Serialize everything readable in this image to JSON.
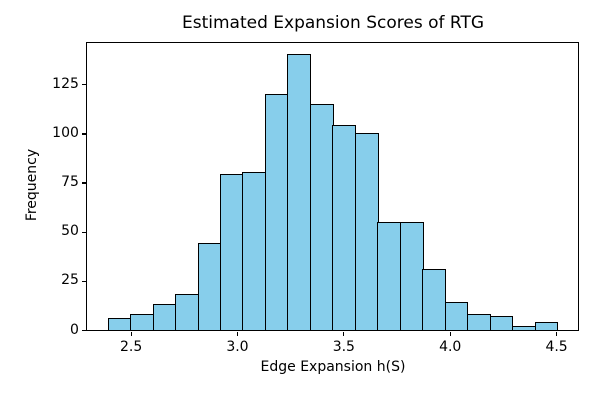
{
  "chart_data": {
    "type": "bar",
    "subtype": "histogram",
    "title": "Estimated Expansion Scores of RTG",
    "xlabel": "Edge Expansion h(S)",
    "ylabel": "Frequency",
    "bin_start": 2.394,
    "bin_width": 0.1056,
    "frequencies": [
      6,
      8,
      13,
      18,
      44,
      79,
      80,
      120,
      140,
      115,
      104,
      100,
      55,
      55,
      31,
      14,
      8,
      7,
      2,
      4
    ],
    "x_ticks": [
      2.5,
      3.0,
      3.5,
      4.0,
      4.5
    ],
    "x_tick_labels": [
      "2.5",
      "3.0",
      "3.5",
      "4.0",
      "4.5"
    ],
    "y_ticks": [
      0,
      25,
      50,
      75,
      100,
      125
    ],
    "y_tick_labels": [
      "0",
      "25",
      "50",
      "75",
      "100",
      "125"
    ],
    "xlim": [
      2.295,
      4.603
    ],
    "ylim": [
      0,
      146
    ],
    "grid": false,
    "legend_position": "none",
    "bar_fill_color": "#87CEEB",
    "bar_edge_color": "#000000",
    "background_color": "#ffffff",
    "text_color": "#000000"
  }
}
